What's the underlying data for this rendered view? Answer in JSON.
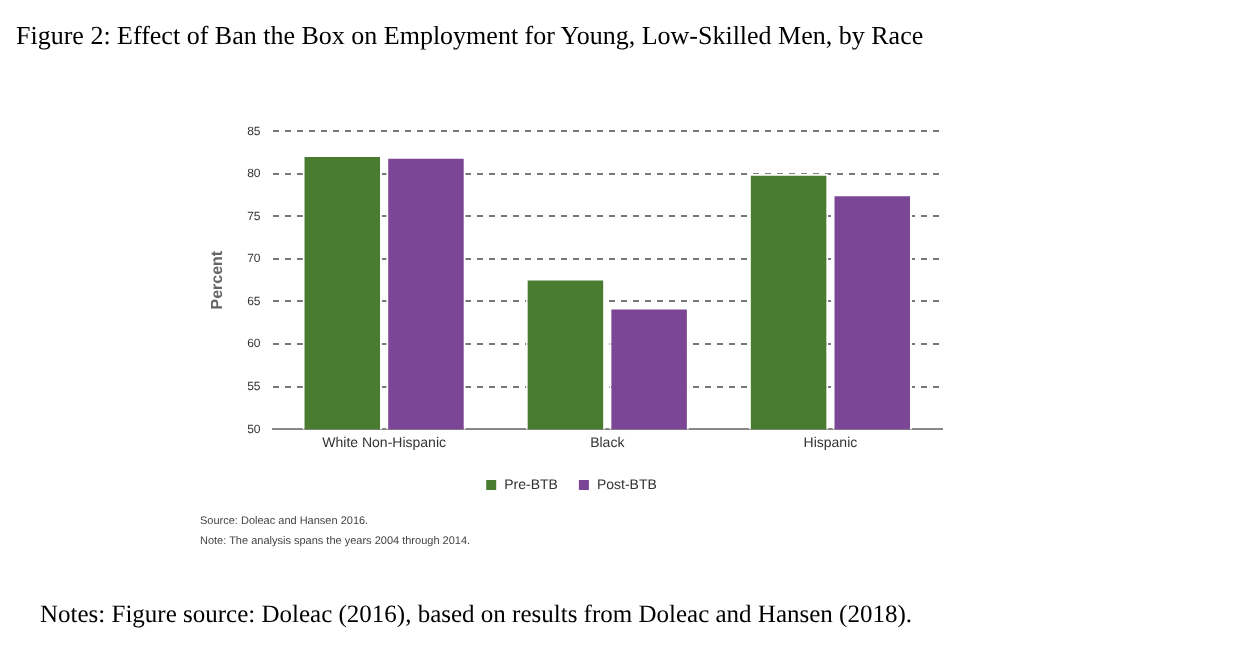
{
  "chart_data": {
    "type": "bar",
    "title": "Figure 2: Effect of Ban the Box on Employment for Young, Low-Skilled Men, by Race",
    "ylabel": "Percent",
    "categories": [
      "White Non-Hispanic",
      "Black",
      "Hispanic"
    ],
    "series": [
      {
        "name": "Pre-BTB",
        "color": "#4a7c2f",
        "values": [
          82.2,
          67.7,
          80.0
        ]
      },
      {
        "name": "Post-BTB",
        "color": "#7b4696",
        "values": [
          82.0,
          64.3,
          77.6
        ]
      }
    ],
    "ylim": [
      50,
      85
    ],
    "yticks": [
      50,
      55,
      60,
      65,
      70,
      75,
      80,
      85
    ],
    "grid": "y",
    "legend": "bottom",
    "annotations": [
      "Source: Doleac and Hansen 2016.",
      "Note: The analysis spans the years 2004 through 2014.",
      "Notes: Figure source: Doleac (2016), based on results from Doleac and Hansen (2018)."
    ]
  }
}
